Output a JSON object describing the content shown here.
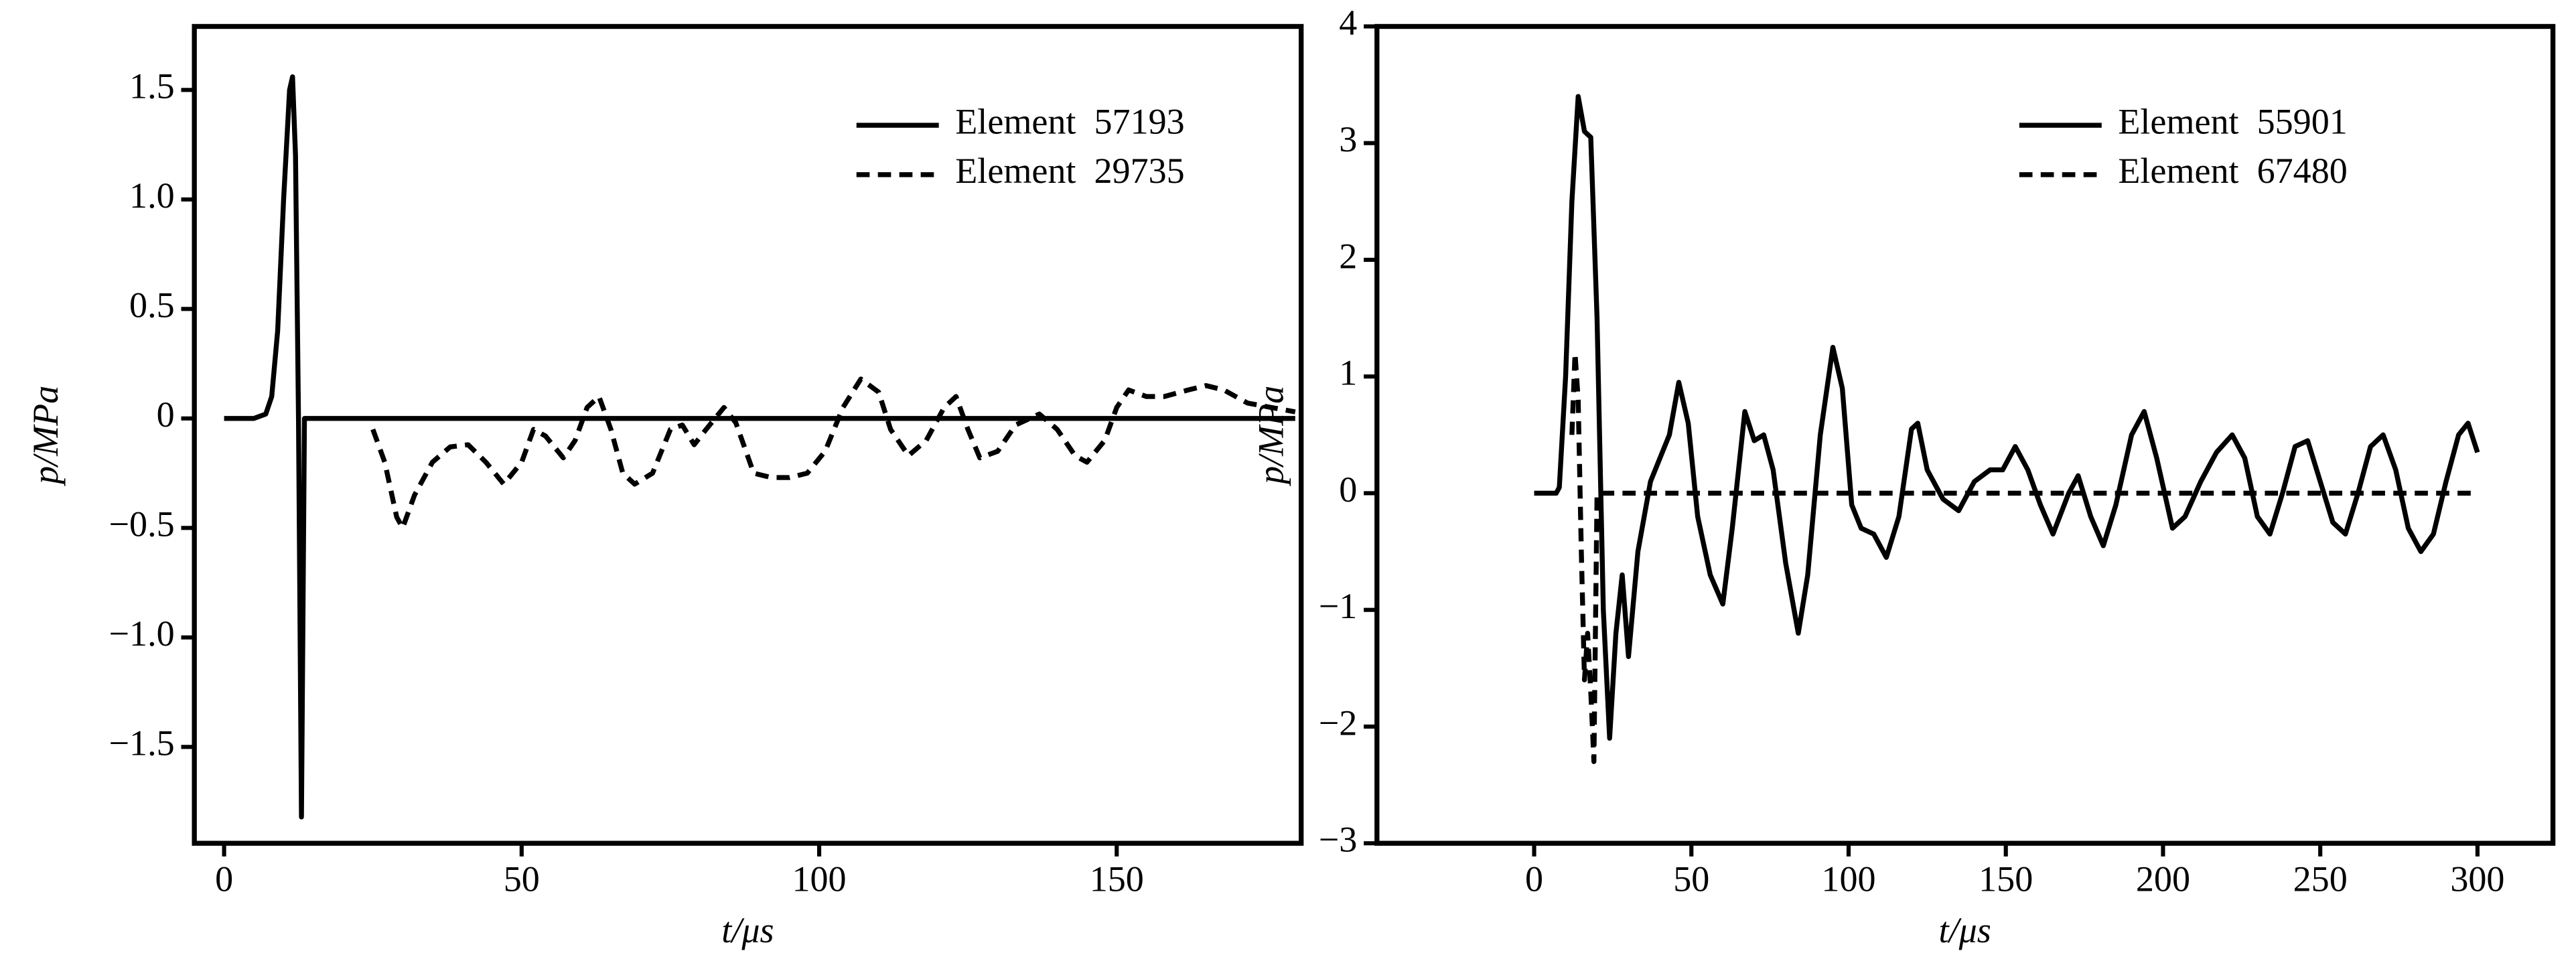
{
  "chart_data": [
    {
      "type": "line",
      "xlabel": "t/μs",
      "ylabel": "p/MPa",
      "xlim": [
        -5,
        181
      ],
      "ylim": [
        -1.94,
        1.79
      ],
      "xticks": [
        0,
        50,
        100,
        150
      ],
      "yticks": [
        {
          "value": -1.5,
          "label": "−1.5"
        },
        {
          "value": -1.0,
          "label": "−1.0"
        },
        {
          "value": -0.5,
          "label": "−0.5"
        },
        0,
        0.5,
        {
          "value": 1.0,
          "label": "1.0"
        },
        1.5
      ],
      "legend": "upper right",
      "series": [
        {
          "name": "Element  57193",
          "color": "#000000",
          "linestyle": "solid",
          "x": [
            0,
            5,
            7,
            8,
            9,
            10,
            11,
            11.5,
            12,
            12.5,
            13,
            13.5,
            15,
            180
          ],
          "values": [
            0,
            0,
            0.02,
            0.1,
            0.4,
            1.0,
            1.5,
            1.56,
            1.2,
            0,
            -1.82,
            0,
            0,
            0
          ]
        },
        {
          "name": "Element  29735",
          "color": "#000000",
          "linestyle": "dashed",
          "x": [
            25,
            27,
            29,
            30,
            32,
            35,
            38,
            41,
            44,
            47,
            50,
            52,
            54,
            57,
            59,
            61,
            63,
            65,
            67,
            69,
            72,
            75,
            77,
            79,
            81,
            84,
            86,
            89,
            92,
            95,
            98,
            101,
            104,
            107,
            110,
            112,
            115,
            118,
            121,
            123,
            125,
            127,
            130,
            133,
            137,
            140,
            143,
            145,
            148,
            150,
            152,
            155,
            158,
            162,
            165,
            168,
            172,
            176,
            180
          ],
          "values": [
            -0.05,
            -0.2,
            -0.45,
            -0.5,
            -0.35,
            -0.2,
            -0.13,
            -0.12,
            -0.2,
            -0.3,
            -0.2,
            -0.05,
            -0.08,
            -0.18,
            -0.1,
            0.05,
            0.1,
            -0.05,
            -0.25,
            -0.3,
            -0.25,
            -0.05,
            -0.03,
            -0.12,
            -0.05,
            0.05,
            -0.02,
            -0.25,
            -0.27,
            -0.27,
            -0.25,
            -0.15,
            0.05,
            0.18,
            0.12,
            -0.05,
            -0.17,
            -0.1,
            0.05,
            0.1,
            -0.05,
            -0.18,
            -0.15,
            -0.03,
            0.02,
            -0.05,
            -0.17,
            -0.2,
            -0.1,
            0.05,
            0.13,
            0.1,
            0.1,
            0.13,
            0.15,
            0.13,
            0.07,
            0.05,
            0.03
          ]
        }
      ]
    },
    {
      "type": "line",
      "xlabel": "t/μs",
      "ylabel": "p/MPa",
      "xlim": [
        -50,
        324
      ],
      "ylim": [
        -3,
        4
      ],
      "xticks": [
        0,
        50,
        100,
        150,
        200,
        250,
        300
      ],
      "yticks": [
        {
          "value": -3,
          "label": "−3"
        },
        {
          "value": -2,
          "label": "−2"
        },
        {
          "value": -1,
          "label": "−1"
        },
        0,
        1,
        2,
        3,
        4
      ],
      "legend": "upper right",
      "series": [
        {
          "name": "Element  55901",
          "color": "#000000",
          "linestyle": "solid",
          "x": [
            0,
            7,
            8,
            10,
            12,
            14,
            16,
            18,
            20,
            22,
            24,
            26,
            28,
            30,
            33,
            37,
            40,
            43,
            46,
            49,
            52,
            56,
            60,
            63,
            67,
            70,
            73,
            76,
            80,
            84,
            87,
            91,
            95,
            98,
            101,
            104,
            108,
            112,
            116,
            120,
            122,
            125,
            130,
            135,
            140,
            145,
            149,
            153,
            157,
            161,
            165,
            170,
            173,
            177,
            181,
            185,
            190,
            194,
            198,
            203,
            207,
            212,
            217,
            222,
            226,
            230,
            234,
            238,
            242,
            246,
            250,
            254,
            258,
            262,
            266,
            270,
            274,
            278,
            282,
            286,
            290,
            294,
            297,
            300
          ],
          "values": [
            0,
            0,
            0.05,
            1,
            2.5,
            3.4,
            3.1,
            3.05,
            1.5,
            -1,
            -2.1,
            -1.2,
            -0.7,
            -1.4,
            -0.5,
            0.1,
            0.3,
            0.5,
            0.95,
            0.6,
            -0.2,
            -0.7,
            -0.95,
            -0.3,
            0.7,
            0.45,
            0.5,
            0.2,
            -0.6,
            -1.2,
            -0.7,
            0.5,
            1.25,
            0.9,
            -0.1,
            -0.3,
            -0.35,
            -0.55,
            -0.2,
            0.55,
            0.6,
            0.2,
            -0.05,
            -0.15,
            0.1,
            0.2,
            0.2,
            0.4,
            0.2,
            -0.1,
            -0.35,
            0,
            0.15,
            -0.2,
            -0.45,
            -0.1,
            0.5,
            0.7,
            0.3,
            -0.3,
            -0.2,
            0.1,
            0.35,
            0.5,
            0.3,
            -0.2,
            -0.35,
            0,
            0.4,
            0.45,
            0.1,
            -0.25,
            -0.35,
            0,
            0.4,
            0.5,
            0.2,
            -0.3,
            -0.5,
            -0.35,
            0.1,
            0.5,
            0.6,
            0.35
          ]
        },
        {
          "name": "Element  67480",
          "color": "#000000",
          "linestyle": "dashed",
          "x": [
            12,
            13,
            14,
            15,
            16,
            17,
            18,
            19,
            20,
            300
          ],
          "values": [
            0.5,
            1.2,
            0.8,
            -0.5,
            -1.6,
            -1.2,
            -1.7,
            -2.3,
            0,
            0
          ]
        }
      ]
    }
  ]
}
